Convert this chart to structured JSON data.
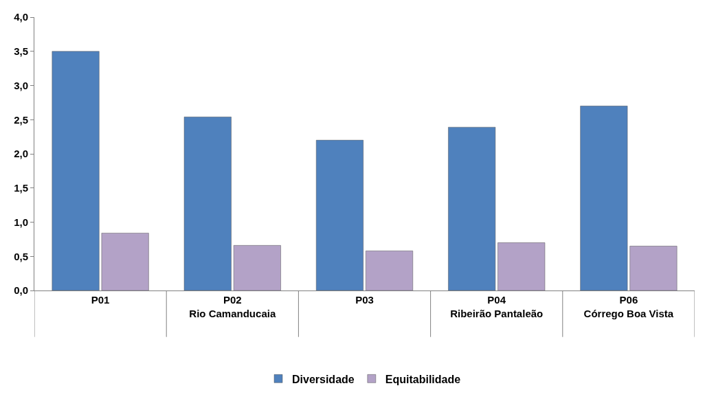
{
  "chart_data": {
    "type": "bar",
    "categories": [
      "P01",
      "P02\nRio Camanducaia",
      "P03",
      "P04\nRibeirão Pantaleão",
      "P06\nCórrego Boa Vista"
    ],
    "series": [
      {
        "name": "Diversidade",
        "color": "#4f81bd",
        "values": [
          3.5,
          2.54,
          2.2,
          2.39,
          2.7
        ]
      },
      {
        "name": "Equitabilidade",
        "color": "#b3a2c7",
        "values": [
          0.84,
          0.66,
          0.58,
          0.7,
          0.65
        ]
      }
    ],
    "ylim": [
      0,
      4
    ],
    "yticks": [
      {
        "value": 0,
        "label": "0,0"
      },
      {
        "value": 0.5,
        "label": "0,5"
      },
      {
        "value": 1,
        "label": "1,0"
      },
      {
        "value": 1.5,
        "label": "1,5"
      },
      {
        "value": 2,
        "label": "2,0"
      },
      {
        "value": 2.5,
        "label": "2,5"
      },
      {
        "value": 3,
        "label": "3,0"
      },
      {
        "value": 3.5,
        "label": "3,5"
      },
      {
        "value": 4,
        "label": "4,0"
      }
    ],
    "legend": "bottom"
  }
}
